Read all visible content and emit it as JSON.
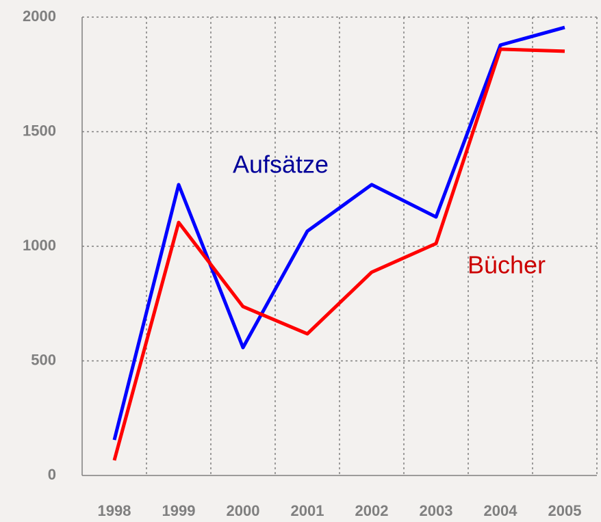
{
  "chart_data": {
    "type": "line",
    "categories": [
      "1998",
      "1999",
      "2000",
      "2001",
      "2002",
      "2003",
      "2004",
      "2005"
    ],
    "series": [
      {
        "name": "Aufsätze",
        "color": "#0000ff",
        "values": [
          155,
          1269,
          558,
          1066,
          1269,
          1128,
          1878,
          1955
        ]
      },
      {
        "name": "Bücher",
        "color": "#ff0000",
        "values": [
          66,
          1104,
          737,
          618,
          887,
          1012,
          1860,
          1851
        ]
      }
    ],
    "ylim": [
      0,
      2000
    ],
    "yticks": [
      0,
      500,
      1000,
      1500,
      2000
    ],
    "grid": true
  }
}
